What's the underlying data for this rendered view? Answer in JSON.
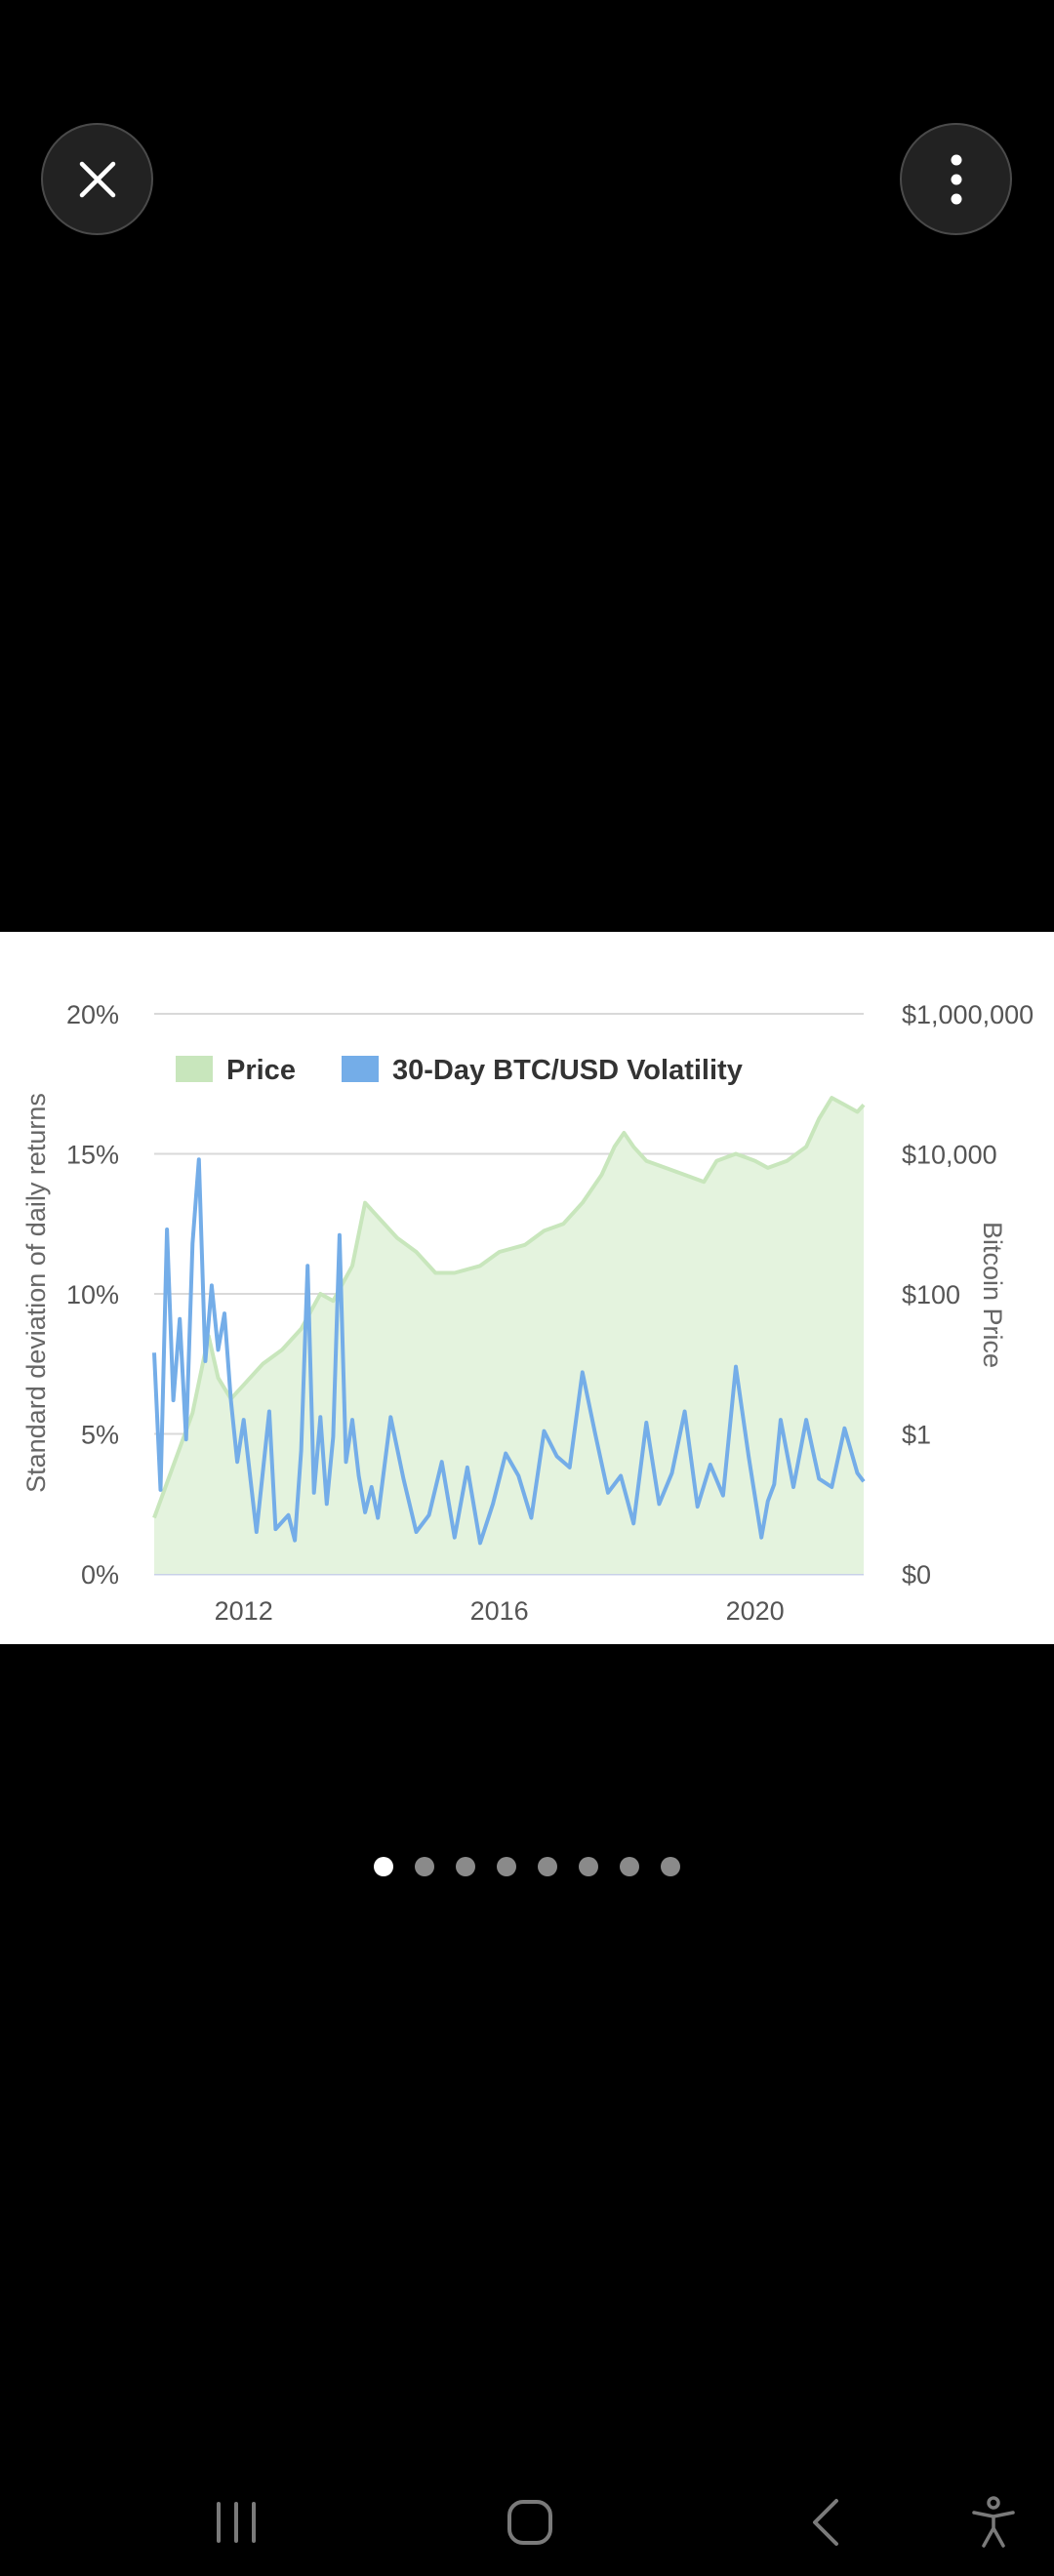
{
  "viewer": {
    "close_icon": "close-icon",
    "more_icon": "more-vertical-icon"
  },
  "chart_data": {
    "type": "line",
    "xlabel": "",
    "ylabel_left": "Standard deviation of daily returns",
    "ylabel_right": "Bitcoin Price",
    "x_ticks": [
      "2012",
      "2016",
      "2020"
    ],
    "y_left_ticks": [
      "0%",
      "5%",
      "10%",
      "15%",
      "20%"
    ],
    "y_right_ticks": [
      "$0",
      "$1",
      "$100",
      "$10,000",
      "$1,000,000"
    ],
    "ylim_left": [
      0,
      20
    ],
    "ylim_right_log10": [
      -2,
      6
    ],
    "xlim": [
      2010.6,
      2021.7
    ],
    "grid": true,
    "legend_position": "top-left",
    "series": [
      {
        "name": "Price",
        "kind": "area",
        "color": "#c8e6bc",
        "fill": "#e4f3de",
        "x": [
          2010.6,
          2010.8,
          2011.0,
          2011.2,
          2011.45,
          2011.6,
          2011.8,
          2012.0,
          2012.3,
          2012.6,
          2012.9,
          2013.2,
          2013.4,
          2013.7,
          2013.9,
          2014.1,
          2014.4,
          2014.7,
          2015.0,
          2015.3,
          2015.7,
          2016.0,
          2016.4,
          2016.7,
          2017.0,
          2017.3,
          2017.6,
          2017.8,
          2017.95,
          2018.1,
          2018.3,
          2018.6,
          2018.9,
          2019.2,
          2019.4,
          2019.7,
          2020.0,
          2020.2,
          2020.5,
          2020.8,
          2021.0,
          2021.2,
          2021.4,
          2021.6,
          2021.7
        ],
        "y": [
          -1.2,
          -0.7,
          -0.2,
          0.3,
          1.4,
          0.8,
          0.5,
          0.7,
          1.0,
          1.2,
          1.5,
          2.0,
          1.9,
          2.4,
          3.3,
          3.1,
          2.8,
          2.6,
          2.3,
          2.3,
          2.4,
          2.6,
          2.7,
          2.9,
          3.0,
          3.3,
          3.7,
          4.1,
          4.3,
          4.1,
          3.9,
          3.8,
          3.7,
          3.6,
          3.9,
          4.0,
          3.9,
          3.8,
          3.9,
          4.1,
          4.5,
          4.8,
          4.7,
          4.6,
          4.7
        ]
      },
      {
        "name": "30-Day BTC/USD Volatility",
        "kind": "line",
        "color": "#74ade8",
        "x": [
          2010.6,
          2010.7,
          2010.8,
          2010.9,
          2011.0,
          2011.1,
          2011.2,
          2011.3,
          2011.4,
          2011.5,
          2011.6,
          2011.7,
          2011.8,
          2011.9,
          2012.0,
          2012.2,
          2012.4,
          2012.5,
          2012.7,
          2012.8,
          2012.9,
          2013.0,
          2013.1,
          2013.2,
          2013.3,
          2013.4,
          2013.5,
          2013.6,
          2013.7,
          2013.8,
          2013.9,
          2014.0,
          2014.1,
          2014.3,
          2014.5,
          2014.7,
          2014.9,
          2015.1,
          2015.3,
          2015.5,
          2015.7,
          2015.9,
          2016.1,
          2016.3,
          2016.5,
          2016.7,
          2016.9,
          2017.1,
          2017.3,
          2017.5,
          2017.7,
          2017.9,
          2018.1,
          2018.3,
          2018.5,
          2018.7,
          2018.9,
          2019.1,
          2019.3,
          2019.5,
          2019.7,
          2019.9,
          2020.1,
          2020.2,
          2020.3,
          2020.4,
          2020.6,
          2020.8,
          2021.0,
          2021.2,
          2021.4,
          2021.6,
          2021.7
        ],
        "y": [
          7.9,
          3.0,
          12.3,
          6.2,
          9.1,
          4.8,
          11.8,
          14.8,
          7.6,
          10.3,
          8.0,
          9.3,
          6.2,
          4.0,
          5.5,
          1.5,
          5.8,
          1.6,
          2.1,
          1.2,
          4.4,
          11.0,
          2.9,
          5.6,
          2.5,
          4.9,
          12.1,
          4.0,
          5.5,
          3.5,
          2.2,
          3.1,
          2.0,
          5.6,
          3.4,
          1.5,
          2.1,
          4.0,
          1.3,
          3.8,
          1.1,
          2.5,
          4.3,
          3.5,
          2.0,
          5.1,
          4.2,
          3.8,
          7.2,
          5.0,
          2.9,
          3.5,
          1.8,
          5.4,
          2.5,
          3.6,
          5.8,
          2.4,
          3.9,
          2.8,
          7.4,
          4.2,
          1.3,
          2.6,
          3.2,
          5.5,
          3.1,
          5.5,
          3.4,
          3.1,
          5.2,
          3.6,
          3.3
        ]
      }
    ]
  },
  "pager": {
    "count": 8,
    "active": 0
  },
  "nav": {
    "recents_icon": "recents-icon",
    "home_icon": "home-icon",
    "back_icon": "back-icon",
    "accessibility_icon": "accessibility-icon"
  }
}
